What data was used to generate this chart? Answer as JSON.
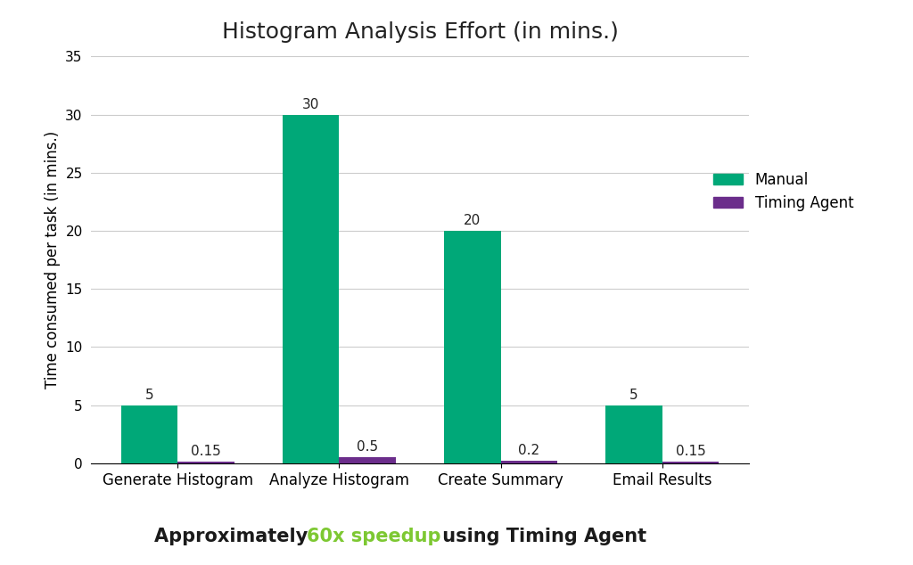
{
  "title": "Histogram Analysis Effort (in mins.)",
  "categories": [
    "Generate Histogram",
    "Analyze Histogram",
    "Create Summary",
    "Email Results"
  ],
  "manual_values": [
    5,
    30,
    20,
    5
  ],
  "agent_values": [
    0.15,
    0.5,
    0.2,
    0.15
  ],
  "manual_color": "#00A878",
  "agent_color": "#6B2D8B",
  "ylabel": "Time consumed per task (in mins.)",
  "ylim": [
    0,
    35
  ],
  "yticks": [
    0,
    5,
    10,
    15,
    20,
    25,
    30,
    35
  ],
  "bar_width": 0.35,
  "legend_labels": [
    "Manual",
    "Timing Agent"
  ],
  "speedup_text_black1": "Approximately ",
  "speedup_text_green": "60x speedup",
  "speedup_text_black2": " using Timing Agent",
  "speedup_color_green": "#7DC832",
  "speedup_color_black": "#1a1a1a",
  "background_color": "#FFFFFF",
  "title_fontsize": 18,
  "label_fontsize": 12,
  "tick_fontsize": 11,
  "annotation_fontsize": 11,
  "speedup_fontsize": 15
}
